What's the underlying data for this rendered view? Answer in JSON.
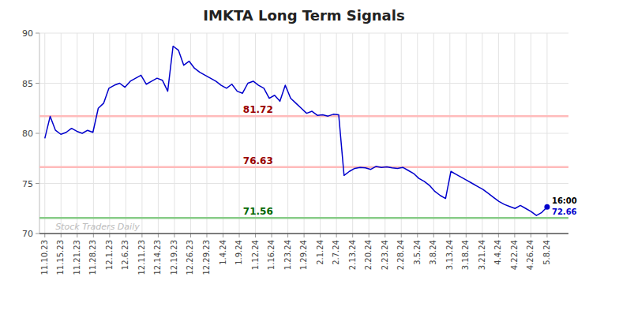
{
  "chart_data": {
    "type": "line",
    "title": "IMKTA Long Term Signals",
    "color": "#0000cc",
    "ylim": [
      70,
      90
    ],
    "yticks": [
      70,
      75,
      80,
      85,
      90
    ],
    "grid": true,
    "xticks": [
      "11.10.23",
      "11.15.23",
      "11.21.23",
      "11.28.23",
      "12.1.23",
      "12.6.23",
      "12.11.23",
      "12.14.23",
      "12.19.23",
      "12.26.23",
      "12.29.23",
      "1.4.24",
      "1.9.24",
      "1.12.24",
      "1.16.24",
      "1.23.24",
      "1.29.24",
      "2.1.24",
      "2.7.24",
      "2.13.24",
      "2.20.24",
      "2.23.24",
      "2.28.24",
      "3.5.24",
      "3.8.24",
      "3.13.24",
      "3.18.24",
      "3.21.24",
      "4.4.24",
      "4.22.24",
      "4.26.24",
      "5.8.24"
    ],
    "values": [
      79.5,
      81.7,
      80.3,
      79.9,
      80.1,
      80.5,
      80.2,
      80.0,
      80.3,
      80.1,
      82.5,
      83.0,
      84.5,
      84.8,
      85.0,
      84.6,
      85.2,
      85.5,
      85.8,
      84.9,
      85.2,
      85.5,
      85.3,
      84.2,
      88.7,
      88.3,
      86.8,
      87.2,
      86.5,
      86.1,
      85.8,
      85.5,
      85.2,
      84.8,
      84.5,
      84.9,
      84.2,
      84.0,
      85.0,
      85.2,
      84.8,
      84.5,
      83.5,
      83.8,
      83.2,
      84.8,
      83.5,
      83.0,
      82.5,
      82.0,
      82.2,
      81.8,
      81.85,
      81.72,
      81.9,
      81.85,
      75.8,
      76.2,
      76.5,
      76.6,
      76.55,
      76.4,
      76.7,
      76.6,
      76.65,
      76.55,
      76.5,
      76.6,
      76.3,
      76.0,
      75.5,
      75.2,
      74.8,
      74.2,
      73.8,
      73.5,
      76.2,
      75.9,
      75.6,
      75.3,
      75.0,
      74.7,
      74.4,
      74.0,
      73.6,
      73.2,
      72.9,
      72.7,
      72.5,
      72.8,
      72.5,
      72.2,
      71.8,
      72.1,
      72.66
    ],
    "hlines": [
      {
        "value": 81.72,
        "label": "81.72",
        "color": "#ffbbbb",
        "label_color": "#990000"
      },
      {
        "value": 76.63,
        "label": "76.63",
        "color": "#ffbbbb",
        "label_color": "#990000"
      },
      {
        "value": 71.56,
        "label": "71.56",
        "color": "#88cc88",
        "label_color": "#006600"
      }
    ],
    "end_point": {
      "value": 72.66,
      "label": "72.66",
      "time": "16:00",
      "color": "#0000cc",
      "time_color": "#000000"
    },
    "watermark": {
      "text": "Stock Traders Daily",
      "color": "#bbbbbb"
    }
  }
}
